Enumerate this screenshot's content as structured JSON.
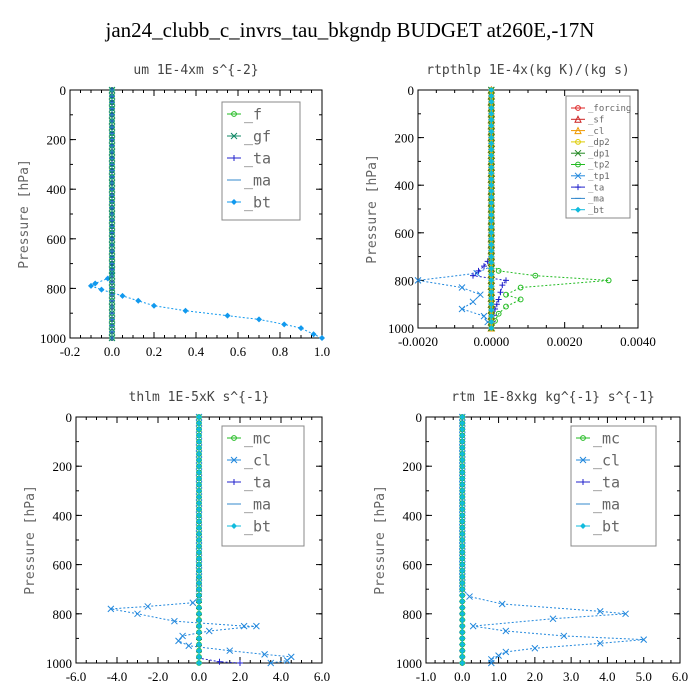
{
  "title": "jan24_clubb_c_invrs_tau_bkgndp  BUDGET at260E,-17N",
  "chart_data": [
    {
      "type": "line",
      "title": "um  1E-4xm s^{-2}",
      "ylabel": "Pressure [hPa]",
      "xlim": [
        -0.2,
        1.0
      ],
      "ylim": [
        1000,
        0
      ],
      "xticks": [
        "-0.2",
        "0.0",
        "0.2",
        "0.4",
        "0.6",
        "0.8",
        "1.0"
      ],
      "yticks": [
        "0",
        "200",
        "400",
        "600",
        "800",
        "1000"
      ],
      "legend_pos": "top-right",
      "series": [
        {
          "name": "_f",
          "color": "#22bb22",
          "marker": "circle",
          "x": [
            0,
            0
          ],
          "y": [
            0,
            1000
          ]
        },
        {
          "name": "_gf",
          "color": "#118866",
          "marker": "x",
          "x": [
            0,
            0
          ],
          "y": [
            0,
            1000
          ]
        },
        {
          "name": "_ta",
          "color": "#2222cc",
          "marker": "plus",
          "x": [
            0,
            0
          ],
          "y": [
            0,
            1000
          ]
        },
        {
          "name": "_ma",
          "color": "#3388cc",
          "marker": "dash",
          "x": [
            0,
            0
          ],
          "y": [
            0,
            1000
          ]
        },
        {
          "name": "_bt",
          "color": "#1199ee",
          "marker": "diamond",
          "x": [
            0,
            0,
            0,
            0,
            -0.02,
            -0.08,
            -0.1,
            -0.05,
            0.05,
            0.2,
            0.35,
            0.55,
            0.7,
            0.82,
            0.9,
            0.96,
            1.0
          ],
          "y": [
            0,
            400,
            700,
            740,
            760,
            780,
            790,
            805,
            830,
            870,
            890,
            910,
            925,
            945,
            960,
            985,
            1000
          ]
        }
      ]
    },
    {
      "type": "line",
      "title": "rtpthlp  1E-4x(kg K)/(kg s)",
      "ylabel": "Pressure [hPa]",
      "xlim": [
        -0.002,
        0.004
      ],
      "ylim": [
        1000,
        0
      ],
      "xticks": [
        "-0.0020",
        "0.0000",
        "0.0020",
        "0.0040"
      ],
      "yticks": [
        "0",
        "200",
        "400",
        "600",
        "800",
        "1000"
      ],
      "legend_pos": "top-right",
      "series": [
        {
          "name": "_forcing",
          "color": "#dd2222",
          "marker": "circle",
          "x": [
            0,
            0
          ],
          "y": [
            0,
            1000
          ]
        },
        {
          "name": "_sf",
          "color": "#cc2222",
          "marker": "tri",
          "x": [
            0,
            0
          ],
          "y": [
            0,
            1000
          ]
        },
        {
          "name": "_cl",
          "color": "#ee9900",
          "marker": "tri",
          "x": [
            0,
            0
          ],
          "y": [
            0,
            1000
          ]
        },
        {
          "name": "_dp2",
          "color": "#ddcc00",
          "marker": "circle",
          "x": [
            0,
            0
          ],
          "y": [
            0,
            1000
          ]
        },
        {
          "name": "_dp1",
          "color": "#228822",
          "marker": "x",
          "x": [
            0,
            0
          ],
          "y": [
            0,
            1000
          ]
        },
        {
          "name": "_tp2",
          "color": "#22bb22",
          "marker": "circle",
          "x": [
            0,
            0,
            0,
            0.0002,
            0.0012,
            0.0032,
            0.0008,
            0.0004,
            0.0008,
            0.0004,
            0.0002,
            0
          ],
          "y": [
            0,
            700,
            730,
            760,
            780,
            800,
            830,
            860,
            880,
            910,
            940,
            1000
          ]
        },
        {
          "name": "_tp1",
          "color": "#2288dd",
          "marker": "x",
          "x": [
            0,
            0,
            0,
            -0.0004,
            -0.002,
            -0.0008,
            -0.0003,
            -0.0005,
            -0.0008,
            -0.0002,
            0
          ],
          "y": [
            0,
            720,
            740,
            770,
            800,
            830,
            860,
            890,
            920,
            950,
            1000
          ]
        },
        {
          "name": "_ta",
          "color": "#2222cc",
          "marker": "plus",
          "x": [
            0,
            0,
            -0.0002,
            -0.0005,
            0.0004,
            0.0003,
            0.0002,
            0.0001,
            0
          ],
          "y": [
            0,
            700,
            740,
            780,
            800,
            820,
            880,
            920,
            1000
          ]
        },
        {
          "name": "_ma",
          "color": "#3388cc",
          "marker": "dash",
          "x": [
            0,
            0
          ],
          "y": [
            0,
            1000
          ]
        },
        {
          "name": "_bt",
          "color": "#11bbdd",
          "marker": "diamond",
          "x": [
            0,
            0
          ],
          "y": [
            0,
            1000
          ]
        }
      ]
    },
    {
      "type": "line",
      "title": "thlm  1E-5xK s^{-1}",
      "ylabel": "Pressure [hPa]",
      "xlim": [
        -6.0,
        6.0
      ],
      "ylim": [
        1000,
        0
      ],
      "xticks": [
        "-6.0",
        "-4.0",
        "-2.0",
        "0.0",
        "2.0",
        "4.0",
        "6.0"
      ],
      "yticks": [
        "0",
        "200",
        "400",
        "600",
        "800",
        "1000"
      ],
      "legend_pos": "top-right",
      "series": [
        {
          "name": "_mc",
          "color": "#22bb22",
          "marker": "circle",
          "x": [
            0,
            0
          ],
          "y": [
            0,
            1000
          ]
        },
        {
          "name": "_cl",
          "color": "#2288dd",
          "marker": "x",
          "x": [
            0,
            0,
            0,
            -0.3,
            -2.5,
            -4.3,
            -3.0,
            -1.2,
            2.2,
            2.8,
            0.5,
            -0.8,
            -1.0,
            -0.5,
            1.5,
            3.2,
            4.5,
            4.3,
            3.5
          ],
          "y": [
            0,
            700,
            730,
            755,
            770,
            780,
            800,
            830,
            850,
            850,
            870,
            890,
            910,
            930,
            950,
            965,
            975,
            990,
            1000
          ]
        },
        {
          "name": "_ta",
          "color": "#2222cc",
          "marker": "plus",
          "x": [
            0,
            0,
            1.0,
            2.0
          ],
          "y": [
            0,
            980,
            995,
            1000
          ]
        },
        {
          "name": "_ma",
          "color": "#3388cc",
          "marker": "dash",
          "x": [
            0,
            0
          ],
          "y": [
            0,
            1000
          ]
        },
        {
          "name": "_bt",
          "color": "#11bbdd",
          "marker": "diamond",
          "x": [
            0,
            0
          ],
          "y": [
            0,
            1000
          ]
        }
      ]
    },
    {
      "type": "line",
      "title": "rtm  1E-8xkg kg^{-1} s^{-1}",
      "ylabel": "Pressure [hPa]",
      "xlim": [
        -1.0,
        6.0
      ],
      "ylim": [
        1000,
        0
      ],
      "xticks": [
        "-1.0",
        "0.0",
        "1.0",
        "2.0",
        "3.0",
        "4.0",
        "5.0",
        "6.0"
      ],
      "yticks": [
        "0",
        "200",
        "400",
        "600",
        "800",
        "1000"
      ],
      "legend_pos": "top-right",
      "series": [
        {
          "name": "_mc",
          "color": "#22bb22",
          "marker": "circle",
          "x": [
            0,
            0
          ],
          "y": [
            0,
            1000
          ]
        },
        {
          "name": "_cl",
          "color": "#2288dd",
          "marker": "x",
          "x": [
            0,
            0,
            0.2,
            1.1,
            3.8,
            4.5,
            2.5,
            0.3,
            1.2,
            2.8,
            5.0,
            3.8,
            2.0,
            1.2,
            1.0,
            0.8,
            0.8
          ],
          "y": [
            0,
            700,
            730,
            760,
            790,
            800,
            820,
            850,
            870,
            890,
            905,
            920,
            940,
            955,
            970,
            985,
            1000
          ]
        },
        {
          "name": "_ta",
          "color": "#2222cc",
          "marker": "plus",
          "x": [
            0,
            0
          ],
          "y": [
            0,
            1000
          ]
        },
        {
          "name": "_ma",
          "color": "#3388cc",
          "marker": "dash",
          "x": [
            0,
            0
          ],
          "y": [
            0,
            1000
          ]
        },
        {
          "name": "_bt",
          "color": "#11bbdd",
          "marker": "diamond",
          "x": [
            0,
            0
          ],
          "y": [
            0,
            1000
          ]
        }
      ]
    }
  ]
}
